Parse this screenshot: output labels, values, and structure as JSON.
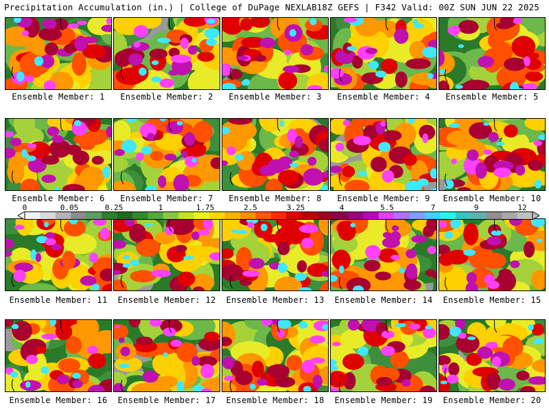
{
  "header": {
    "left": "Precipitation Accumulation (in.) | College of DuPage NEXLAB",
    "right": "18Z GEFS | F342 Valid: 00Z SUN JUN 22 2025"
  },
  "members": [
    {
      "label": "Ensemble Member: 1",
      "seed": 1
    },
    {
      "label": "Ensemble Member: 2",
      "seed": 2
    },
    {
      "label": "Ensemble Member: 3",
      "seed": 3
    },
    {
      "label": "Ensemble Member: 4",
      "seed": 4
    },
    {
      "label": "Ensemble Member: 5",
      "seed": 5
    },
    {
      "label": "Ensemble Member: 6",
      "seed": 6
    },
    {
      "label": "Ensemble Member: 7",
      "seed": 7
    },
    {
      "label": "Ensemble Member: 8",
      "seed": 8
    },
    {
      "label": "Ensemble Member: 9",
      "seed": 9
    },
    {
      "label": "Ensemble Member: 10",
      "seed": 10
    },
    {
      "label": "Ensemble Member: 11",
      "seed": 11
    },
    {
      "label": "Ensemble Member: 12",
      "seed": 12
    },
    {
      "label": "Ensemble Member: 13",
      "seed": 13
    },
    {
      "label": "Ensemble Member: 14",
      "seed": 14
    },
    {
      "label": "Ensemble Member: 15",
      "seed": 15
    },
    {
      "label": "Ensemble Member: 16",
      "seed": 16
    },
    {
      "label": "Ensemble Member: 17",
      "seed": 17
    },
    {
      "label": "Ensemble Member: 18",
      "seed": 18
    },
    {
      "label": "Ensemble Member: 19",
      "seed": 19
    },
    {
      "label": "Ensemble Member: 20",
      "seed": 20
    }
  ],
  "colorbar": {
    "labels": [
      "0",
      "0.05",
      "0.25",
      "1",
      "1.75",
      "2.5",
      "3.25",
      "4",
      "5.5",
      "7",
      "9",
      "12"
    ],
    "colors": [
      "#f2f2f2",
      "#d9d9d9",
      "#b3b3b3",
      "#8c8c8c",
      "#5e9e5e",
      "#2f7f2f",
      "#1e6b1e",
      "#2e8b2e",
      "#55a83a",
      "#8cc63f",
      "#c7e02a",
      "#f0f020",
      "#ffd700",
      "#ffb000",
      "#ff8c00",
      "#ff5a00",
      "#ff2a00",
      "#e00000",
      "#c00000",
      "#a00020",
      "#90004a",
      "#a00080",
      "#c000c0",
      "#e040f0",
      "#b070ff",
      "#7ea0ff",
      "#40d0ff",
      "#30f0f0",
      "#40c0c0",
      "#60b0b0",
      "#909090",
      "#a8a8a8",
      "#c0c0c0"
    ]
  },
  "legend_colors": {
    "levels": [
      "#9a9a9a",
      "#3d8f3d",
      "#2a7a2a",
      "#6cb84a",
      "#a5d23a",
      "#e8ec28",
      "#ffd000",
      "#ff9800",
      "#ff5000",
      "#e00000",
      "#a80030",
      "#c010b0",
      "#ff40ff",
      "#40e8ff"
    ]
  }
}
